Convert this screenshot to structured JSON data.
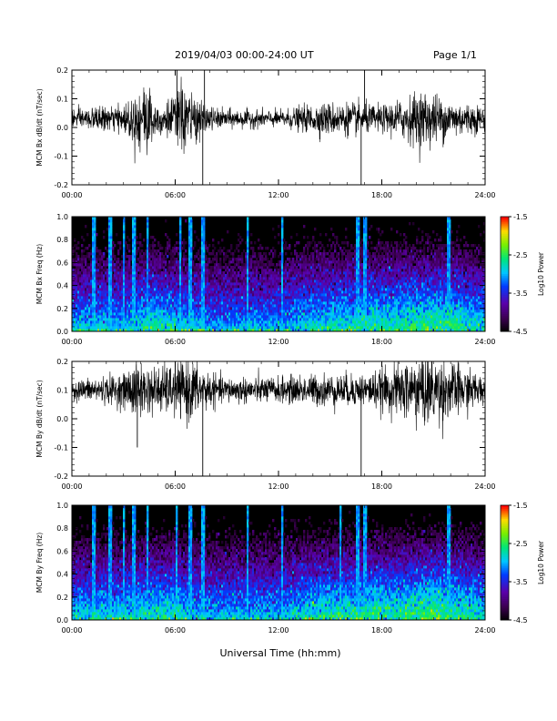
{
  "header": {
    "title": "2019/04/03  00:00-24:00 UT",
    "page": "Page 1/1"
  },
  "footer": {
    "xlabel": "Universal Time (hh:mm)"
  },
  "chart_data": [
    {
      "type": "line",
      "ylabel": "MCM Bx dB/dt (nT/sec)",
      "xlim": [
        0,
        24
      ],
      "x_ticks": [
        "00:00",
        "06:00",
        "12:00",
        "18:00",
        "24:00"
      ],
      "ylim": [
        -0.2,
        0.2
      ],
      "y_ticks": [
        "0.2",
        "0.1",
        "0.0",
        "-0.1",
        "-0.2"
      ],
      "baseline": 0.03,
      "envelope": [
        {
          "x": 0,
          "amp": 0.03
        },
        {
          "x": 3,
          "amp": 0.04
        },
        {
          "x": 3.7,
          "amp": 0.09
        },
        {
          "x": 4.3,
          "amp": 0.12
        },
        {
          "x": 5.0,
          "amp": 0.05
        },
        {
          "x": 6.0,
          "amp": 0.07
        },
        {
          "x": 6.4,
          "amp": 0.12
        },
        {
          "x": 7.5,
          "amp": 0.05
        },
        {
          "x": 8.5,
          "amp": 0.03
        },
        {
          "x": 12,
          "amp": 0.025
        },
        {
          "x": 14.5,
          "amp": 0.05
        },
        {
          "x": 16.5,
          "amp": 0.05
        },
        {
          "x": 18,
          "amp": 0.04
        },
        {
          "x": 19.5,
          "amp": 0.07
        },
        {
          "x": 20.5,
          "amp": 0.09
        },
        {
          "x": 22,
          "amp": 0.06
        },
        {
          "x": 24,
          "amp": 0.04
        }
      ],
      "spikes": [
        {
          "x": 7.6,
          "y": -0.2
        },
        {
          "x": 7.7,
          "y": 0.2
        },
        {
          "x": 16.8,
          "y": -0.2
        },
        {
          "x": 17.0,
          "y": 0.2
        },
        {
          "x": 6.1,
          "y": 0.2
        }
      ]
    },
    {
      "type": "heatmap",
      "ylabel": "MCM Bx Freq (Hz)",
      "xlim": [
        0,
        24
      ],
      "x_ticks": [
        "00:00",
        "06:00",
        "12:00",
        "18:00",
        "24:00"
      ],
      "ylim": [
        0,
        1.0
      ],
      "y_ticks": [
        "1.0",
        "0.8",
        "0.6",
        "0.4",
        "0.2",
        "0.0"
      ],
      "colorbar": {
        "label": "Log10 Power",
        "range": [
          -4.5,
          -1.5
        ],
        "ticks": [
          "-1.5",
          "-2.5",
          "-3.5",
          "-4.5"
        ]
      },
      "stripes": [
        1.3,
        2.2,
        3.0,
        3.6,
        4.4,
        6.3,
        6.9,
        7.6,
        10.2,
        12.2,
        16.6,
        17.0,
        21.9
      ],
      "active": [
        {
          "x": 0,
          "level": 0.35
        },
        {
          "x": 3,
          "level": 0.35
        },
        {
          "x": 4.5,
          "level": 0.55
        },
        {
          "x": 6,
          "level": 0.45
        },
        {
          "x": 8,
          "level": 0.25
        },
        {
          "x": 12,
          "level": 0.3
        },
        {
          "x": 14.5,
          "level": 0.5
        },
        {
          "x": 17,
          "level": 0.55
        },
        {
          "x": 19.5,
          "level": 0.6
        },
        {
          "x": 21,
          "level": 0.7
        },
        {
          "x": 24,
          "level": 0.45
        }
      ]
    },
    {
      "type": "line",
      "ylabel": "MCM By dB/dt (nT/sec)",
      "xlim": [
        0,
        24
      ],
      "x_ticks": [
        "00:00",
        "06:00",
        "12:00",
        "18:00",
        "24:00"
      ],
      "ylim": [
        -0.2,
        0.2
      ],
      "y_ticks": [
        "0.2",
        "0.1",
        "0.0",
        "-0.1",
        "-0.2"
      ],
      "baseline": 0.1,
      "envelope": [
        {
          "x": 0,
          "amp": 0.03
        },
        {
          "x": 3,
          "amp": 0.05
        },
        {
          "x": 3.8,
          "amp": 0.1
        },
        {
          "x": 4.5,
          "amp": 0.07
        },
        {
          "x": 6.0,
          "amp": 0.08
        },
        {
          "x": 6.8,
          "amp": 0.1
        },
        {
          "x": 8.5,
          "amp": 0.04
        },
        {
          "x": 12,
          "amp": 0.04
        },
        {
          "x": 14.5,
          "amp": 0.05
        },
        {
          "x": 17,
          "amp": 0.05
        },
        {
          "x": 18.5,
          "amp": 0.07
        },
        {
          "x": 20.5,
          "amp": 0.12
        },
        {
          "x": 22,
          "amp": 0.09
        },
        {
          "x": 24,
          "amp": 0.04
        }
      ],
      "spikes": [
        {
          "x": 3.8,
          "y": -0.1
        },
        {
          "x": 7.6,
          "y": -0.2
        },
        {
          "x": 16.8,
          "y": -0.2
        },
        {
          "x": 6.0,
          "y": 0.2
        }
      ]
    },
    {
      "type": "heatmap",
      "ylabel": "MCM By Freq (Hz)",
      "xlim": [
        0,
        24
      ],
      "x_ticks": [
        "00:00",
        "06:00",
        "12:00",
        "18:00",
        "24:00"
      ],
      "ylim": [
        0,
        1.0
      ],
      "y_ticks": [
        "1.0",
        "0.8",
        "0.6",
        "0.4",
        "0.2",
        "0.0"
      ],
      "colorbar": {
        "label": "Log10 Power",
        "range": [
          -4.5,
          -1.5
        ],
        "ticks": [
          "-1.5",
          "-2.5",
          "-3.5",
          "-4.5"
        ]
      },
      "stripes": [
        1.3,
        2.2,
        3.0,
        3.6,
        4.4,
        6.1,
        6.9,
        7.6,
        10.2,
        12.2,
        15.6,
        16.6,
        17.0,
        21.9
      ],
      "active": [
        {
          "x": 0,
          "level": 0.4
        },
        {
          "x": 3,
          "level": 0.4
        },
        {
          "x": 4.5,
          "level": 0.55
        },
        {
          "x": 6,
          "level": 0.5
        },
        {
          "x": 8,
          "level": 0.3
        },
        {
          "x": 12,
          "level": 0.35
        },
        {
          "x": 14.5,
          "level": 0.55
        },
        {
          "x": 17,
          "level": 0.6
        },
        {
          "x": 19.5,
          "level": 0.65
        },
        {
          "x": 21,
          "level": 0.75
        },
        {
          "x": 24,
          "level": 0.5
        }
      ]
    }
  ]
}
